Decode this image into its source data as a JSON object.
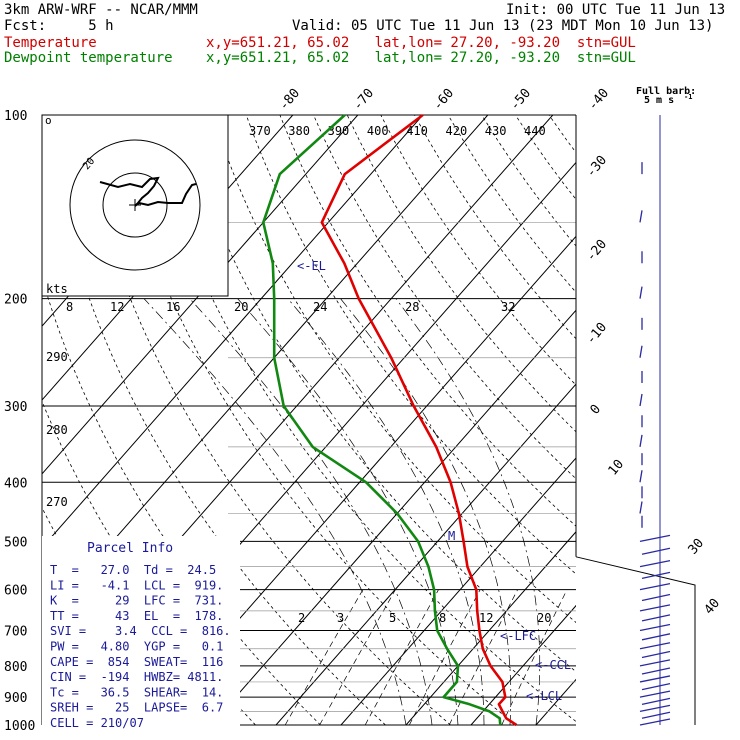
{
  "header": {
    "model": "3km ARW-WRF -- NCAR/MMM",
    "init": "Init: 00 UTC Tue 11 Jun 13",
    "fcst": "Fcst:     5 h",
    "valid": "Valid: 05 UTC Tue 11 Jun 13 (23 MDT Mon 10 Jun 13)",
    "temp_label": "Temperature",
    "dew_label": "Dewpoint temperature",
    "temp_loc": "x,y=651.21, 65.02   lat,lon= 27.20, -93.20  stn=GUL",
    "dew_loc": "x,y=651.21, 65.02   lat,lon= 27.20, -93.20  stn=GUL"
  },
  "full_barb_note": [
    "Full barb:",
    "5 m s"
  ],
  "pressure_ticks": [
    "100",
    "200",
    "300",
    "400",
    "500",
    "600",
    "700",
    "800",
    "900",
    "1000"
  ],
  "temp_ticks_top": [
    "-80",
    "-70",
    "-60",
    "-50",
    "-40"
  ],
  "temp_ticks_right": [
    "-30",
    "-20",
    "-10",
    "0",
    "10",
    "30",
    "40"
  ],
  "theta_labels": [
    "370",
    "380",
    "390",
    "400",
    "410",
    "420",
    "430",
    "440"
  ],
  "theta_left": [
    "290",
    "280",
    "270"
  ],
  "mixing_ratio": [
    "2",
    "3",
    "5",
    "8",
    "12",
    "20"
  ],
  "hodo": {
    "unit": "kts",
    "ring_label": "20",
    "speed_ticks": [
      "8",
      "12",
      "16",
      "20",
      "24",
      "28",
      "32"
    ]
  },
  "annotations": {
    "el": "<-EL",
    "lfc": "<-LFC",
    "ccl": "<-CCL",
    "lcl": "<-LCL",
    "m": "M"
  },
  "parcel_info": {
    "title": "Parcel Info",
    "rows": [
      "T  =   27.0  Td =  24.5",
      "LI =   -4.1  LCL =  919.",
      "K  =     29  LFC =  731.",
      "TT =     43  EL  =  178.",
      "SVI =    3.4  CCL =  816.",
      "PW =   4.80  YGP =   0.1",
      "CAPE =  854  SWEAT=  116",
      "CIN =  -194  HWBZ= 4811.",
      "Tc =   36.5  SHEAR=  14.",
      "SREH =   25  LAPSE=  6.7",
      "CELL = 210/07"
    ]
  },
  "colors": {
    "temperature": "#e00000",
    "dewpoint": "#118811",
    "annot": "#1a1a9a",
    "grid": "#000000"
  },
  "chart_data": {
    "type": "line",
    "title": "",
    "xlabel": "",
    "ylabel": "",
    "y_scale": "log-pressure",
    "ylim": [
      1000,
      100
    ],
    "series": [
      {
        "name": "Temperature",
        "points": [
          {
            "p": 1000,
            "t": 27.0
          },
          {
            "p": 975,
            "t": 24.5
          },
          {
            "p": 950,
            "t": 23.0
          },
          {
            "p": 925,
            "t": 21.5
          },
          {
            "p": 900,
            "t": 21.5
          },
          {
            "p": 850,
            "t": 19.0
          },
          {
            "p": 800,
            "t": 15.0
          },
          {
            "p": 750,
            "t": 11.5
          },
          {
            "p": 700,
            "t": 8.5
          },
          {
            "p": 650,
            "t": 5.5
          },
          {
            "p": 600,
            "t": 2.5
          },
          {
            "p": 550,
            "t": -2.0
          },
          {
            "p": 500,
            "t": -6.0
          },
          {
            "p": 450,
            "t": -10.5
          },
          {
            "p": 400,
            "t": -16.0
          },
          {
            "p": 350,
            "t": -23.0
          },
          {
            "p": 300,
            "t": -32.0
          },
          {
            "p": 250,
            "t": -42.0
          },
          {
            "p": 200,
            "t": -55.0
          },
          {
            "p": 175,
            "t": -62.0
          },
          {
            "p": 150,
            "t": -71.0
          },
          {
            "p": 125,
            "t": -74.0
          },
          {
            "p": 100,
            "t": -70.0
          }
        ]
      },
      {
        "name": "Dewpoint temperature",
        "points": [
          {
            "p": 1000,
            "t": 24.5
          },
          {
            "p": 975,
            "t": 23.5
          },
          {
            "p": 950,
            "t": 21.0
          },
          {
            "p": 925,
            "t": 17.0
          },
          {
            "p": 900,
            "t": 12.0
          },
          {
            "p": 850,
            "t": 12.0
          },
          {
            "p": 800,
            "t": 10.0
          },
          {
            "p": 750,
            "t": 6.0
          },
          {
            "p": 700,
            "t": 2.0
          },
          {
            "p": 650,
            "t": -1.0
          },
          {
            "p": 600,
            "t": -4.0
          },
          {
            "p": 550,
            "t": -8.0
          },
          {
            "p": 500,
            "t": -13.0
          },
          {
            "p": 450,
            "t": -20.0
          },
          {
            "p": 400,
            "t": -29.0
          },
          {
            "p": 350,
            "t": -42.0
          },
          {
            "p": 300,
            "t": -52.0
          },
          {
            "p": 250,
            "t": -60.0
          },
          {
            "p": 200,
            "t": -68.0
          },
          {
            "p": 175,
            "t": -73.0
          },
          {
            "p": 150,
            "t": -80.0
          },
          {
            "p": 125,
            "t": -84.0
          },
          {
            "p": 100,
            "t": -82.0
          }
        ]
      }
    ]
  }
}
